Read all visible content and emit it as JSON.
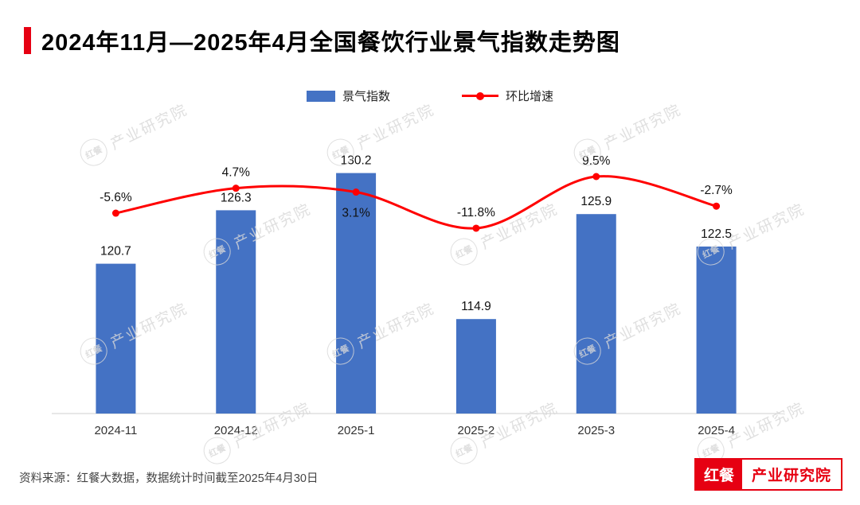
{
  "page": {
    "title": "2024年11月—2025年4月全国餐饮行业景气指数走势图",
    "source_note": "资料来源：红餐大数据，数据统计时间截至2025年4月30日",
    "logo": {
      "brand": "红餐",
      "suffix": "产业研究院"
    },
    "watermark_text": "红餐 产业研究院"
  },
  "colors": {
    "accent_red": "#e60012",
    "bar": "#4472c4",
    "line": "#ff0000",
    "axis": "#cfcfcf",
    "label": "#111111",
    "tick": "#333333",
    "watermark": "#d8d8d8"
  },
  "chart_data": {
    "type": "bar",
    "combo": "bar+line",
    "title": "2024年11月—2025年4月全国餐饮行业景气指数走势图",
    "categories": [
      "2024-11",
      "2024-12",
      "2025-1",
      "2025-2",
      "2025-3",
      "2025-4"
    ],
    "series": [
      {
        "name": "景气指数",
        "type": "bar",
        "values": [
          120.7,
          126.3,
          130.2,
          114.9,
          125.9,
          122.5
        ]
      },
      {
        "name": "环比增速",
        "type": "line",
        "unit": "%",
        "values": [
          -5.6,
          4.7,
          3.1,
          -11.8,
          9.5,
          -2.7
        ]
      }
    ],
    "legend_position": "top",
    "grid": false,
    "bar_axis_min": 105,
    "xlabel": "",
    "ylabel": ""
  }
}
